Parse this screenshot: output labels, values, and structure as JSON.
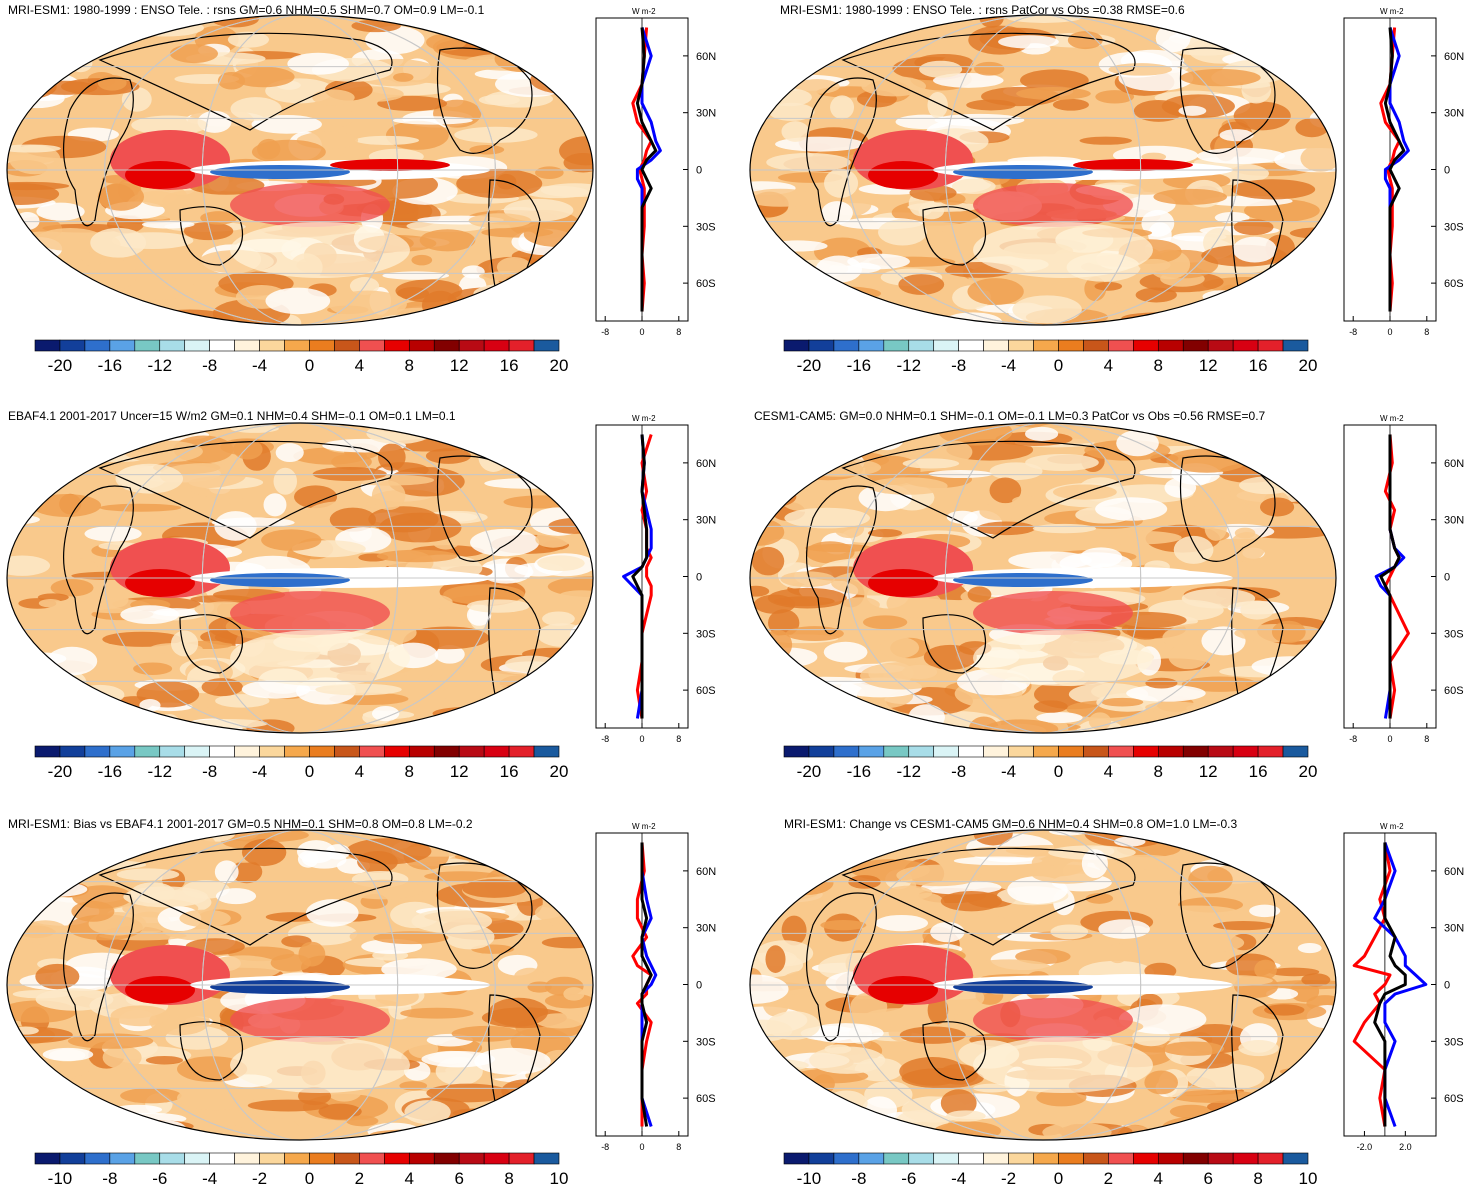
{
  "chart_data": [
    {
      "type": "heatmap",
      "panel": "top-left",
      "title": "MRI-ESM1: 1980-1999 : ENSO Tele. : rsns GM=0.6 NHM=0.5 SHM=0.7 OM=0.9 LM=-0.1",
      "colorbar": {
        "ticks": [
          "-20",
          "-16",
          "-12",
          "-8",
          "-4",
          "0",
          "4",
          "8",
          "12",
          "16",
          "20"
        ],
        "range": [
          -20,
          20
        ]
      },
      "profile": {
        "unit": "W m-2",
        "xticks": [
          "-8",
          "0",
          "8"
        ],
        "xlim": [
          -10,
          10
        ],
        "yticks": [
          "60N",
          "30N",
          "0",
          "30S",
          "60S"
        ],
        "ylim": [
          -80,
          80
        ],
        "series": [
          {
            "color": "#ff0000",
            "lat": [
              75,
              60,
              45,
              35,
              25,
              15,
              10,
              5,
              0,
              -5,
              -10,
              -20,
              -30,
              -45,
              -60,
              -75
            ],
            "values": [
              1,
              0.5,
              0,
              -2,
              -1,
              2,
              1,
              0.5,
              -0.5,
              0,
              0.5,
              0.5,
              0.5,
              0,
              0.5,
              0
            ]
          },
          {
            "color": "#0000ff",
            "lat": [
              75,
              60,
              45,
              35,
              25,
              15,
              10,
              5,
              0,
              -5,
              -10,
              -20,
              -30,
              -45,
              -60,
              -75
            ],
            "values": [
              0,
              2,
              0,
              0,
              2,
              3,
              4,
              2,
              -1,
              -1,
              0,
              0,
              0,
              0,
              0,
              0
            ]
          },
          {
            "color": "#000000",
            "lat": [
              75,
              60,
              45,
              35,
              25,
              15,
              10,
              5,
              0,
              -5,
              -10,
              -20,
              -30,
              -45,
              -60,
              -75
            ],
            "values": [
              0,
              0.5,
              0,
              -1,
              0,
              2,
              3,
              1,
              0,
              1,
              2,
              0,
              0,
              0,
              0,
              0
            ]
          }
        ]
      }
    },
    {
      "type": "heatmap",
      "panel": "top-right",
      "title": "MRI-ESM1: 1980-1999 : ENSO Tele. : rsns PatCor vs Obs =0.38 RMSE=0.6",
      "colorbar": {
        "ticks": [
          "-20",
          "-16",
          "-12",
          "-8",
          "-4",
          "0",
          "4",
          "8",
          "12",
          "16",
          "20"
        ],
        "range": [
          -20,
          20
        ]
      },
      "profile": {
        "unit": "W m-2",
        "xticks": [
          "-8",
          "0",
          "8"
        ],
        "xlim": [
          -10,
          10
        ],
        "yticks": [
          "60N",
          "30N",
          "0",
          "30S",
          "60S"
        ],
        "ylim": [
          -80,
          80
        ],
        "series": [
          {
            "color": "#ff0000",
            "lat": [
              75,
              60,
              45,
              35,
              25,
              15,
              10,
              5,
              0,
              -5,
              -10,
              -20,
              -30,
              -45,
              -60,
              -75
            ],
            "values": [
              1,
              0.5,
              0,
              -2,
              -1,
              2,
              1,
              0.5,
              -0.5,
              0,
              0.5,
              0.5,
              0.5,
              0,
              0.5,
              0
            ]
          },
          {
            "color": "#0000ff",
            "lat": [
              75,
              60,
              45,
              35,
              25,
              15,
              10,
              5,
              0,
              -5,
              -10,
              -20,
              -30,
              -45,
              -60,
              -75
            ],
            "values": [
              0,
              2,
              0,
              0,
              2,
              3,
              4,
              2,
              -1,
              -1,
              0,
              0,
              0,
              0,
              0,
              0
            ]
          },
          {
            "color": "#000000",
            "lat": [
              75,
              60,
              45,
              35,
              25,
              15,
              10,
              5,
              0,
              -5,
              -10,
              -20,
              -30,
              -45,
              -60,
              -75
            ],
            "values": [
              0,
              0.5,
              0,
              -1,
              0,
              2,
              3,
              1,
              0,
              1,
              2,
              0,
              0,
              0,
              0,
              0
            ]
          }
        ]
      }
    },
    {
      "type": "heatmap",
      "panel": "middle-left",
      "title": "EBAF4.1 2001-2017 Uncer=15 W/m2 GM=0.1 NHM=0.4 SHM=-0.1 OM=0.1 LM=0.1",
      "colorbar": {
        "ticks": [
          "-20",
          "-16",
          "-12",
          "-8",
          "-4",
          "0",
          "4",
          "8",
          "12",
          "16",
          "20"
        ],
        "range": [
          -20,
          20
        ]
      },
      "profile": {
        "unit": "W m-2",
        "xticks": [
          "-8",
          "0",
          "8"
        ],
        "xlim": [
          -10,
          10
        ],
        "yticks": [
          "60N",
          "30N",
          "0",
          "30S",
          "60S"
        ],
        "ylim": [
          -80,
          80
        ],
        "series": [
          {
            "color": "#ff0000",
            "lat": [
              75,
              60,
              45,
              35,
              25,
              15,
              10,
              5,
              0,
              -5,
              -10,
              -20,
              -30,
              -45,
              -60,
              -75
            ],
            "values": [
              2,
              0,
              1,
              0,
              1,
              1,
              2,
              1,
              1,
              2,
              2,
              1,
              0,
              0,
              -1,
              0
            ]
          },
          {
            "color": "#0000ff",
            "lat": [
              75,
              60,
              45,
              35,
              25,
              15,
              10,
              5,
              0,
              -5,
              -10,
              -20,
              -30,
              -45,
              -60,
              -75
            ],
            "values": [
              0,
              0.5,
              0,
              1,
              2,
              2,
              1,
              0,
              -4,
              -2,
              0,
              0,
              0,
              0,
              0,
              -1
            ]
          },
          {
            "color": "#000000",
            "lat": [
              75,
              60,
              45,
              35,
              25,
              15,
              10,
              5,
              0,
              -5,
              -10,
              -20,
              -30,
              -45,
              -60,
              -75
            ],
            "values": [
              0,
              0.5,
              0,
              0.5,
              1,
              1,
              1,
              0,
              -2,
              -1,
              0,
              0,
              0,
              0,
              0,
              0
            ]
          }
        ]
      }
    },
    {
      "type": "heatmap",
      "panel": "middle-right",
      "title": "CESM1-CAM5: GM=0.0 NHM=0.1 SHM=-0.1 OM=-0.1 LM=0.3 PatCor vs Obs =0.56 RMSE=0.7",
      "colorbar": {
        "ticks": [
          "-20",
          "-16",
          "-12",
          "-8",
          "-4",
          "0",
          "4",
          "8",
          "12",
          "16",
          "20"
        ],
        "range": [
          -20,
          20
        ]
      },
      "profile": {
        "unit": "W m-2",
        "xticks": [
          "-8",
          "0",
          "8"
        ],
        "xlim": [
          -10,
          10
        ],
        "yticks": [
          "60N",
          "30N",
          "0",
          "30S",
          "60S"
        ],
        "ylim": [
          -80,
          80
        ],
        "series": [
          {
            "color": "#ff0000",
            "lat": [
              75,
              60,
              45,
              35,
              25,
              15,
              10,
              5,
              0,
              -5,
              -10,
              -20,
              -30,
              -45,
              -60,
              -75
            ],
            "values": [
              0,
              0.5,
              -1,
              1,
              0,
              1,
              2,
              1,
              0,
              -1,
              0,
              2,
              4,
              0,
              1,
              0
            ]
          },
          {
            "color": "#0000ff",
            "lat": [
              75,
              60,
              45,
              35,
              25,
              15,
              10,
              5,
              0,
              -5,
              -10,
              -20,
              -30,
              -45,
              -60,
              -75
            ],
            "values": [
              0,
              0,
              0,
              0,
              0,
              1,
              3,
              1,
              -3,
              -2,
              0,
              0,
              0,
              0,
              0,
              -1
            ]
          },
          {
            "color": "#000000",
            "lat": [
              75,
              60,
              45,
              35,
              25,
              15,
              10,
              5,
              0,
              -5,
              -10,
              -20,
              -30,
              -45,
              -60,
              -75
            ],
            "values": [
              0,
              0,
              0,
              0,
              0,
              1,
              2,
              1,
              -2,
              -1,
              0,
              0,
              0,
              0,
              0,
              0
            ]
          }
        ]
      }
    },
    {
      "type": "heatmap",
      "panel": "bottom-left",
      "title": "MRI-ESM1: Bias vs EBAF4.1 2001-2017 GM=0.5 NHM=0.1 SHM=0.8 OM=0.8 LM=-0.2",
      "colorbar": {
        "ticks": [
          "-10",
          "-8",
          "-6",
          "-4",
          "-2",
          "0",
          "2",
          "4",
          "6",
          "8",
          "10"
        ],
        "range": [
          -10,
          10
        ]
      },
      "profile": {
        "unit": "W m-2",
        "xticks": [
          "-8",
          "0",
          "8"
        ],
        "xlim": [
          -10,
          10
        ],
        "yticks": [
          "60N",
          "30N",
          "0",
          "30S",
          "60S"
        ],
        "ylim": [
          -80,
          80
        ],
        "series": [
          {
            "color": "#ff0000",
            "lat": [
              75,
              60,
              45,
              35,
              25,
              15,
              10,
              5,
              0,
              -5,
              -10,
              -20,
              -30,
              -45,
              -60,
              -75
            ],
            "values": [
              0,
              0.5,
              -1,
              -1,
              1,
              -2,
              -1,
              2,
              1,
              1,
              -1,
              2,
              1,
              0,
              0,
              0
            ]
          },
          {
            "color": "#0000ff",
            "lat": [
              75,
              60,
              45,
              35,
              25,
              15,
              10,
              5,
              0,
              -5,
              -10,
              -20,
              -30,
              -45,
              -60,
              -75
            ],
            "values": [
              0,
              0,
              1,
              2,
              0,
              1,
              2,
              3,
              2,
              0,
              0,
              0,
              0,
              0,
              0,
              2
            ]
          },
          {
            "color": "#000000",
            "lat": [
              75,
              60,
              45,
              35,
              25,
              15,
              10,
              5,
              0,
              -5,
              -10,
              -20,
              -30,
              -45,
              -60,
              -75
            ],
            "values": [
              0,
              0,
              0,
              1,
              0,
              0,
              1,
              2,
              1,
              0,
              0,
              1,
              0,
              0,
              0,
              1
            ]
          }
        ]
      }
    },
    {
      "type": "heatmap",
      "panel": "bottom-right",
      "title": "MRI-ESM1: Change vs CESM1-CAM5 GM=0.6 NHM=0.4 SHM=0.8 OM=1.0 LM=-0.3",
      "colorbar": {
        "ticks": [
          "-10",
          "-8",
          "-6",
          "-4",
          "-2",
          "0",
          "2",
          "4",
          "6",
          "8",
          "10"
        ],
        "range": [
          -10,
          10
        ]
      },
      "profile": {
        "unit": "W m-2",
        "xticks": [
          "-2.0",
          "2.0"
        ],
        "xlim": [
          -4,
          5
        ],
        "yticks": [
          "60N",
          "30N",
          "0",
          "30S",
          "60S"
        ],
        "ylim": [
          -80,
          80
        ],
        "series": [
          {
            "color": "#ff0000",
            "lat": [
              75,
              60,
              45,
              35,
              25,
              15,
              10,
              5,
              0,
              -5,
              -10,
              -20,
              -30,
              -45,
              -60,
              -75
            ],
            "values": [
              0,
              0.5,
              -0.5,
              0,
              -1,
              -2,
              -3,
              0.5,
              0,
              -1,
              -0.5,
              -2,
              -3,
              0,
              -0.5,
              0
            ]
          },
          {
            "color": "#0000ff",
            "lat": [
              75,
              60,
              45,
              35,
              25,
              15,
              10,
              5,
              0,
              -5,
              -10,
              -20,
              -30,
              -45,
              -60,
              -75
            ],
            "values": [
              0,
              1,
              0,
              -1,
              1,
              2,
              2,
              3,
              4,
              1,
              0,
              0,
              1,
              0,
              0,
              1
            ]
          },
          {
            "color": "#000000",
            "lat": [
              75,
              60,
              45,
              35,
              25,
              15,
              10,
              5,
              0,
              -5,
              -10,
              -20,
              -30,
              -45,
              -60,
              -75
            ],
            "values": [
              0,
              0,
              0,
              0,
              1,
              0.5,
              1,
              2,
              2,
              0,
              -0.5,
              -1,
              0,
              0,
              0,
              0
            ]
          }
        ]
      }
    }
  ]
}
